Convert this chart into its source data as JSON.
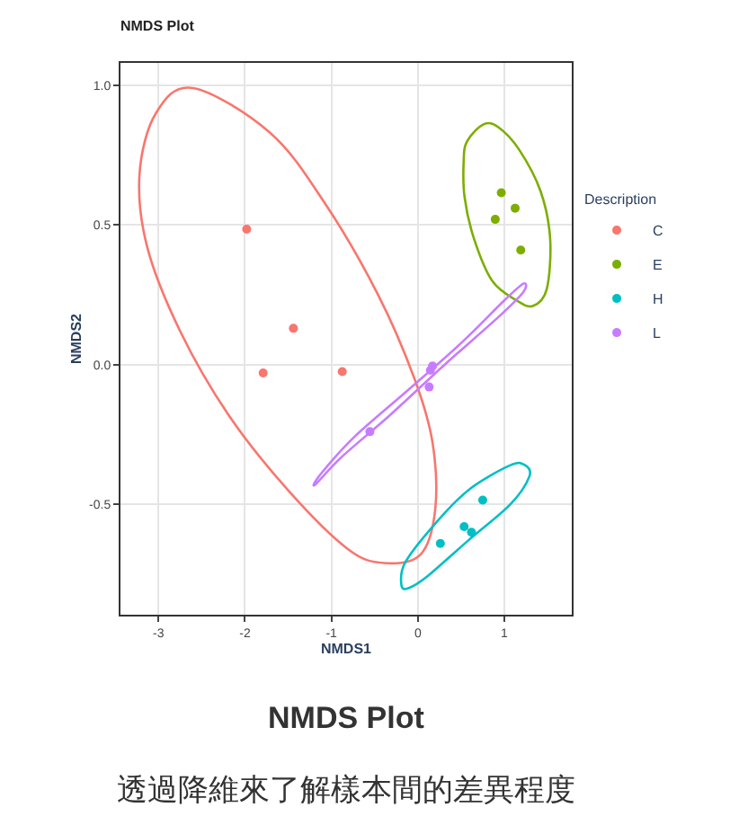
{
  "chart_data": {
    "type": "scatter",
    "title": "NMDS Plot",
    "xlabel": "NMDS1",
    "ylabel": "NMDS2",
    "legend_title": "Description",
    "annotations": [
      "NMDS Plot",
      "透過降維來了解樣本間的差異程度"
    ],
    "xlim": [
      -3.44,
      1.78
    ],
    "ylim": [
      -0.895,
      1.08
    ],
    "xticks": [
      -3,
      -2,
      -1,
      0,
      1
    ],
    "yticks": [
      -0.5,
      {
        "value": 0,
        "label": "0.0"
      },
      0.5,
      {
        "value": 1,
        "label": "1.0"
      }
    ],
    "grid": true,
    "legend": "right",
    "marker": "circle",
    "series": [
      {
        "name": "C",
        "color": "#f8766d",
        "x": [
          -1.98,
          -1.44,
          -1.79,
          -0.875
        ],
        "values": [
          0.485,
          0.13,
          -0.03,
          -0.025
        ]
      },
      {
        "name": "E",
        "color": "#7cae00",
        "x": [
          0.965,
          1.125,
          0.895,
          1.19
        ],
        "values": [
          0.615,
          0.56,
          0.52,
          0.41
        ]
      },
      {
        "name": "H",
        "color": "#00bfc4",
        "x": [
          0.75,
          0.535,
          0.62,
          0.26
        ],
        "values": [
          -0.485,
          -0.58,
          -0.6,
          -0.64
        ]
      },
      {
        "name": "L",
        "color": "#c77cff",
        "x": [
          0.17,
          0.145,
          0.13,
          -0.555
        ],
        "values": [
          -0.005,
          -0.02,
          -0.08,
          -0.24
        ]
      }
    ]
  }
}
